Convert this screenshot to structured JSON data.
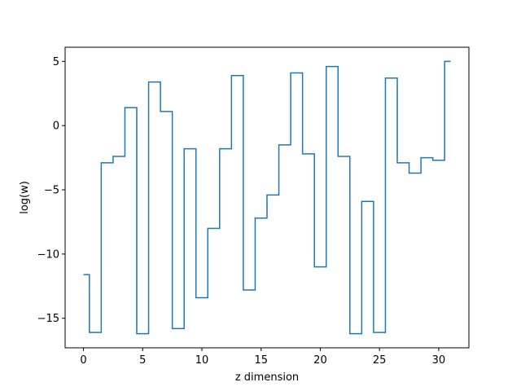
{
  "chart_data": {
    "type": "line",
    "drawstyle": "steps-mid",
    "title": "",
    "xlabel": "z dimension",
    "ylabel": "log(w)",
    "xlim": [
      -1.55,
      32.55
    ],
    "ylim": [
      -17.3,
      6.1
    ],
    "xticks": [
      0,
      5,
      10,
      15,
      20,
      25,
      30
    ],
    "yticks": [
      -15,
      -10,
      -5,
      0,
      5
    ],
    "xtick_labels": [
      "0",
      "5",
      "10",
      "15",
      "20",
      "25",
      "30"
    ],
    "ytick_labels": [
      "−15",
      "−10",
      "−5",
      "0",
      "5"
    ],
    "grid": false,
    "series": [
      {
        "color": "#1f77b4",
        "x": [
          0,
          1,
          2,
          3,
          4,
          5,
          6,
          7,
          8,
          9,
          10,
          11,
          12,
          13,
          14,
          15,
          16,
          17,
          18,
          19,
          20,
          21,
          22,
          23,
          24,
          25,
          26,
          27,
          28,
          29,
          30,
          31
        ],
        "y": [
          -11.6,
          -16.1,
          -2.9,
          -2.4,
          1.4,
          -16.2,
          3.4,
          1.1,
          -15.8,
          -1.8,
          -13.4,
          -8.0,
          -1.8,
          3.9,
          -12.8,
          -7.2,
          -5.4,
          -1.5,
          4.1,
          -2.2,
          -11.0,
          4.6,
          -2.4,
          -16.2,
          -5.9,
          -16.1,
          3.7,
          -2.9,
          -3.7,
          -2.5,
          -2.7,
          5.0
        ]
      }
    ]
  }
}
